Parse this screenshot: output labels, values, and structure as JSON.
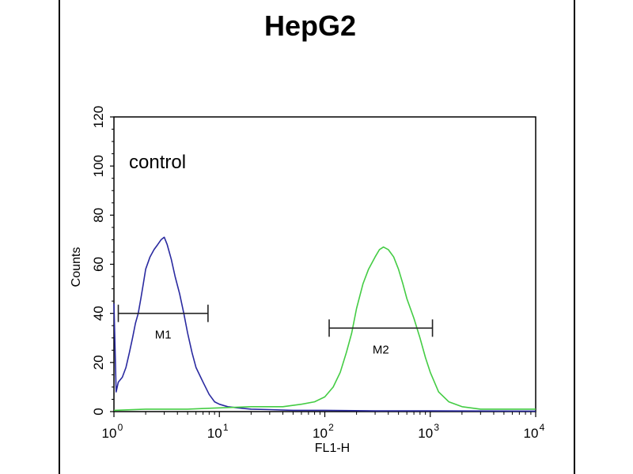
{
  "chart_data": {
    "type": "line",
    "title": "HepG2",
    "xlabel": "FL1-H",
    "ylabel": "Counts",
    "xscale": "log",
    "xlim": [
      1,
      10000
    ],
    "ylim": [
      0,
      120
    ],
    "grid": false,
    "x_ticks": [
      {
        "base": "10",
        "exp": "0",
        "value": 1
      },
      {
        "base": "10",
        "exp": "1",
        "value": 10
      },
      {
        "base": "10",
        "exp": "2",
        "value": 100
      },
      {
        "base": "10",
        "exp": "3",
        "value": 1000
      },
      {
        "base": "10",
        "exp": "4",
        "value": 10000
      }
    ],
    "y_ticks": [
      "0",
      "20",
      "40",
      "60",
      "80",
      "100",
      "120"
    ],
    "annotation": "control",
    "series": [
      {
        "color": "#2a2aa0",
        "points": [
          [
            1.0,
            44
          ],
          [
            1.05,
            8
          ],
          [
            1.1,
            12
          ],
          [
            1.2,
            14
          ],
          [
            1.3,
            18
          ],
          [
            1.4,
            24
          ],
          [
            1.5,
            30
          ],
          [
            1.6,
            36
          ],
          [
            1.7,
            40
          ],
          [
            1.8,
            46
          ],
          [
            1.9,
            52
          ],
          [
            2.0,
            58
          ],
          [
            2.2,
            63
          ],
          [
            2.4,
            66
          ],
          [
            2.6,
            68
          ],
          [
            2.8,
            70
          ],
          [
            3.0,
            71
          ],
          [
            3.2,
            68
          ],
          [
            3.5,
            62
          ],
          [
            3.8,
            55
          ],
          [
            4.2,
            48
          ],
          [
            4.6,
            40
          ],
          [
            5.0,
            32
          ],
          [
            5.5,
            24
          ],
          [
            6.0,
            18
          ],
          [
            7.0,
            12
          ],
          [
            8.0,
            7
          ],
          [
            9.0,
            4
          ],
          [
            10,
            3
          ],
          [
            12,
            2
          ],
          [
            15,
            1.5
          ],
          [
            20,
            1
          ],
          [
            30,
            0.8
          ],
          [
            50,
            0.5
          ],
          [
            100,
            0.5
          ],
          [
            300,
            0.3
          ],
          [
            1000,
            0.3
          ],
          [
            10000,
            0.2
          ]
        ]
      },
      {
        "color": "#44cc44",
        "points": [
          [
            1.0,
            0.5
          ],
          [
            2,
            1
          ],
          [
            5,
            1
          ],
          [
            10,
            1.5
          ],
          [
            20,
            2
          ],
          [
            40,
            2
          ],
          [
            60,
            3
          ],
          [
            80,
            4
          ],
          [
            100,
            6
          ],
          [
            120,
            10
          ],
          [
            140,
            16
          ],
          [
            160,
            24
          ],
          [
            180,
            32
          ],
          [
            200,
            42
          ],
          [
            230,
            52
          ],
          [
            260,
            58
          ],
          [
            300,
            63
          ],
          [
            330,
            66
          ],
          [
            360,
            67
          ],
          [
            400,
            66
          ],
          [
            450,
            63
          ],
          [
            500,
            58
          ],
          [
            550,
            52
          ],
          [
            600,
            46
          ],
          [
            700,
            38
          ],
          [
            800,
            30
          ],
          [
            900,
            22
          ],
          [
            1000,
            16
          ],
          [
            1200,
            8
          ],
          [
            1500,
            4
          ],
          [
            2000,
            2
          ],
          [
            3000,
            1
          ],
          [
            5000,
            1
          ],
          [
            10000,
            1
          ]
        ]
      }
    ],
    "gates": [
      {
        "label": "M1",
        "x_start": 1.1,
        "x_end": 7.8,
        "y": 40
      },
      {
        "label": "M2",
        "x_start": 110,
        "x_end": 1050,
        "y": 34
      }
    ]
  }
}
